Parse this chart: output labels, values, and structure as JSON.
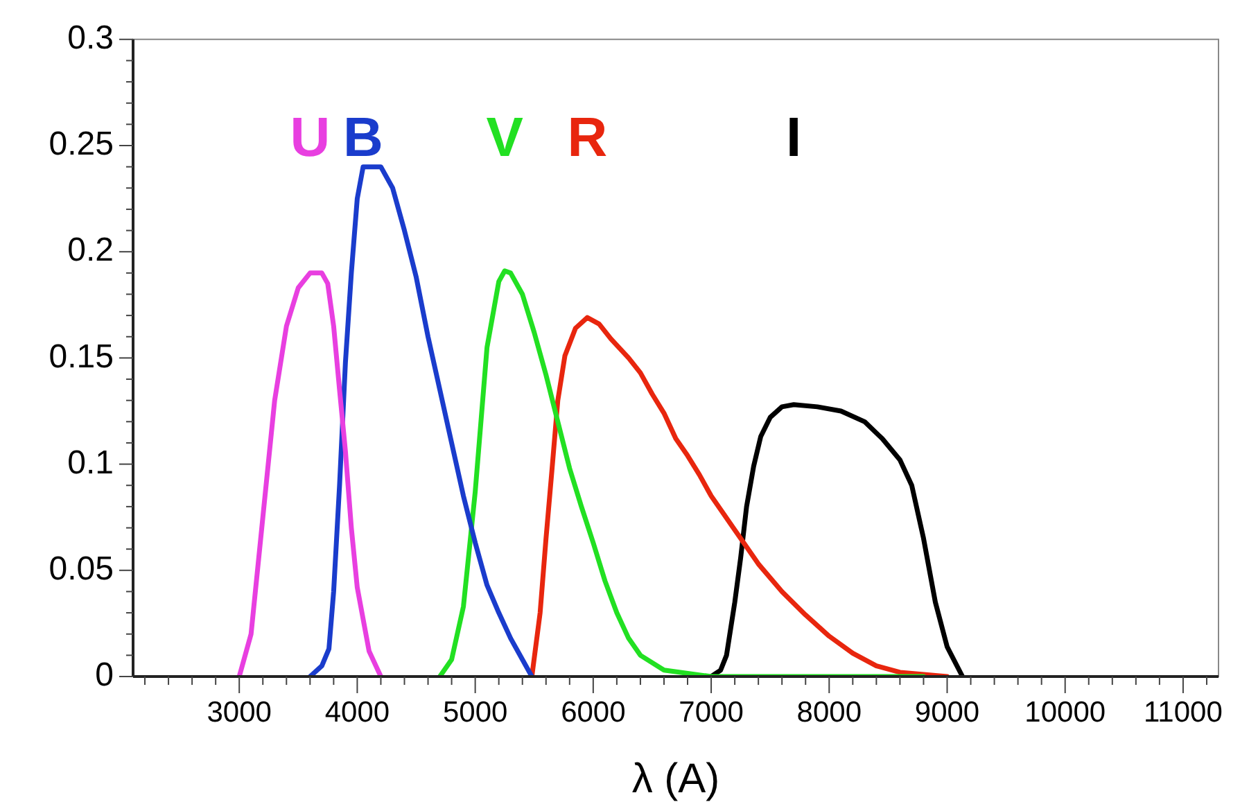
{
  "chart_data": {
    "type": "line",
    "xlabel": "λ (A)",
    "marker": "none",
    "line_style": "solid",
    "grid": false,
    "legend": false,
    "xlim": [
      2100,
      11300
    ],
    "ylim": [
      0,
      0.3
    ],
    "xticks": [
      {
        "value": 2200,
        "label": null
      },
      {
        "value": 2400,
        "label": null
      },
      {
        "value": 2600,
        "label": null
      },
      {
        "value": 2800,
        "label": null
      },
      3000,
      {
        "value": 3200,
        "label": null
      },
      {
        "value": 3400,
        "label": null
      },
      {
        "value": 3600,
        "label": null
      },
      {
        "value": 3800,
        "label": null
      },
      4000,
      {
        "value": 4200,
        "label": null
      },
      {
        "value": 4400,
        "label": null
      },
      {
        "value": 4600,
        "label": null
      },
      {
        "value": 4800,
        "label": null
      },
      5000,
      {
        "value": 5200,
        "label": null
      },
      {
        "value": 5400,
        "label": null
      },
      {
        "value": 5600,
        "label": null
      },
      {
        "value": 5800,
        "label": null
      },
      6000,
      {
        "value": 6200,
        "label": null
      },
      {
        "value": 6400,
        "label": null
      },
      {
        "value": 6600,
        "label": null
      },
      {
        "value": 6800,
        "label": null
      },
      7000,
      {
        "value": 7200,
        "label": null
      },
      {
        "value": 7400,
        "label": null
      },
      {
        "value": 7600,
        "label": null
      },
      {
        "value": 7800,
        "label": null
      },
      8000,
      {
        "value": 8200,
        "label": null
      },
      {
        "value": 8400,
        "label": null
      },
      {
        "value": 8600,
        "label": null
      },
      {
        "value": 8800,
        "label": null
      },
      9000,
      {
        "value": 9200,
        "label": null
      },
      {
        "value": 9400,
        "label": null
      },
      {
        "value": 9600,
        "label": null
      },
      {
        "value": 9800,
        "label": null
      },
      10000,
      {
        "value": 10200,
        "label": null
      },
      {
        "value": 10400,
        "label": null
      },
      {
        "value": 10600,
        "label": null
      },
      {
        "value": 10800,
        "label": null
      },
      11000,
      {
        "value": 11200,
        "label": null
      }
    ],
    "yticks": [
      0,
      {
        "value": 0.01,
        "label": null
      },
      {
        "value": 0.02,
        "label": null
      },
      {
        "value": 0.03,
        "label": null
      },
      {
        "value": 0.04,
        "label": null
      },
      0.05,
      {
        "value": 0.06,
        "label": null
      },
      {
        "value": 0.07,
        "label": null
      },
      {
        "value": 0.08,
        "label": null
      },
      {
        "value": 0.09,
        "label": null
      },
      0.1,
      {
        "value": 0.11,
        "label": null
      },
      {
        "value": 0.12,
        "label": null
      },
      {
        "value": 0.13,
        "label": null
      },
      {
        "value": 0.14,
        "label": null
      },
      0.15,
      {
        "value": 0.16,
        "label": null
      },
      {
        "value": 0.17,
        "label": null
      },
      {
        "value": 0.18,
        "label": null
      },
      {
        "value": 0.19,
        "label": null
      },
      0.2,
      {
        "value": 0.21,
        "label": null
      },
      {
        "value": 0.22,
        "label": null
      },
      {
        "value": 0.23,
        "label": null
      },
      {
        "value": 0.24,
        "label": null
      },
      0.25,
      {
        "value": 0.26,
        "label": null
      },
      {
        "value": 0.27,
        "label": null
      },
      {
        "value": 0.28,
        "label": null
      },
      {
        "value": 0.29,
        "label": null
      },
      0.3
    ],
    "series": [
      {
        "name": "U",
        "color": "#e83fe0",
        "x": [
          3000,
          3100,
          3200,
          3300,
          3400,
          3500,
          3600,
          3700,
          3750,
          3800,
          3850,
          3900,
          3950,
          4000,
          4100,
          4200
        ],
        "values": [
          0,
          0.02,
          0.075,
          0.13,
          0.165,
          0.183,
          0.19,
          0.19,
          0.185,
          0.165,
          0.135,
          0.106,
          0.07,
          0.042,
          0.012,
          0
        ]
      },
      {
        "name": "B",
        "color": "#1a3ccc",
        "x": [
          3600,
          3700,
          3760,
          3800,
          3850,
          3900,
          3950,
          4000,
          4050,
          4200,
          4300,
          4400,
          4500,
          4600,
          4700,
          4800,
          4900,
          5000,
          5100,
          5200,
          5300,
          5400,
          5480
        ],
        "values": [
          0,
          0.005,
          0.013,
          0.04,
          0.09,
          0.148,
          0.19,
          0.225,
          0.24,
          0.24,
          0.23,
          0.21,
          0.188,
          0.16,
          0.135,
          0.11,
          0.085,
          0.063,
          0.043,
          0.03,
          0.018,
          0.008,
          0
        ]
      },
      {
        "name": "V",
        "color": "#22e022",
        "x": [
          4700,
          4800,
          4900,
          5000,
          5100,
          5200,
          5250,
          5300,
          5400,
          5500,
          5600,
          5700,
          5800,
          5900,
          6000,
          6100,
          6200,
          6300,
          6400,
          6600,
          7000,
          8800
        ],
        "values": [
          0,
          0.008,
          0.033,
          0.087,
          0.155,
          0.186,
          0.191,
          0.19,
          0.18,
          0.162,
          0.142,
          0.12,
          0.098,
          0.08,
          0.063,
          0.045,
          0.03,
          0.018,
          0.01,
          0.003,
          0,
          0
        ]
      },
      {
        "name": "R",
        "color": "#e8260e",
        "x": [
          5480,
          5550,
          5600,
          5650,
          5700,
          5760,
          5850,
          5950,
          6050,
          6150,
          6300,
          6400,
          6500,
          6600,
          6700,
          6800,
          6900,
          7000,
          7100,
          7250,
          7400,
          7600,
          7800,
          8000,
          8200,
          8400,
          8600,
          9000
        ],
        "values": [
          0,
          0.03,
          0.065,
          0.097,
          0.13,
          0.151,
          0.164,
          0.169,
          0.166,
          0.159,
          0.15,
          0.143,
          0.133,
          0.124,
          0.112,
          0.104,
          0.095,
          0.085,
          0.077,
          0.065,
          0.053,
          0.04,
          0.029,
          0.019,
          0.011,
          0.005,
          0.002,
          0
        ]
      },
      {
        "name": "I",
        "color": "#000000",
        "x": [
          7000,
          7080,
          7130,
          7200,
          7250,
          7300,
          7360,
          7420,
          7500,
          7600,
          7700,
          7900,
          8100,
          8300,
          8450,
          8600,
          8700,
          8800,
          8900,
          9000,
          9130
        ],
        "values": [
          0,
          0.003,
          0.01,
          0.035,
          0.056,
          0.08,
          0.099,
          0.113,
          0.122,
          0.127,
          0.128,
          0.127,
          0.125,
          0.12,
          0.112,
          0.102,
          0.09,
          0.065,
          0.035,
          0.014,
          0
        ]
      }
    ]
  }
}
